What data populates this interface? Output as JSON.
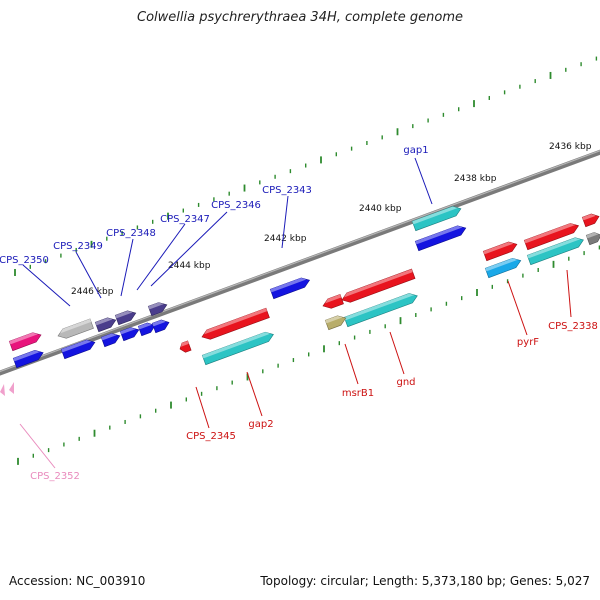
{
  "title": "Colwellia psychrerythraea 34H, complete genome",
  "footer": {
    "accession": "Accession: NC_003910",
    "topology": "Topology: circular; Length: 5,373,180 bp; Genes: 5,027"
  },
  "colors": {
    "backbone": "#7a7a7a",
    "tick": "#2e8b2e",
    "forward_label": "#1a1ab8",
    "reverse_label": "#cc1111",
    "pseudo_label": "#e98bbd",
    "red": "#e8141e",
    "cyan": "#2cc4c4",
    "blue": "#1414e0",
    "purple": "#4a3d8c",
    "gray": "#b8b8b8",
    "magenta": "#e8147c",
    "olive": "#b8ad6a",
    "skyblue": "#1aa8e8",
    "pink": "#f0a0cc"
  },
  "scale_labels": [
    "2436 kbp",
    "2438 kbp",
    "2440 kbp",
    "2442 kbp",
    "2444 kbp",
    "2446 kbp"
  ],
  "gene_labels": [
    {
      "name": "gap1",
      "strand": "forward"
    },
    {
      "name": "CPS_2343",
      "strand": "forward"
    },
    {
      "name": "CPS_2346",
      "strand": "forward"
    },
    {
      "name": "CPS_2347",
      "strand": "forward"
    },
    {
      "name": "CPS_2348",
      "strand": "forward"
    },
    {
      "name": "CPS_2349",
      "strand": "forward"
    },
    {
      "name": "CPS_2350",
      "strand": "forward"
    },
    {
      "name": "CPS_2338",
      "strand": "reverse"
    },
    {
      "name": "pyrF",
      "strand": "reverse"
    },
    {
      "name": "gnd",
      "strand": "reverse"
    },
    {
      "name": "msrB1",
      "strand": "reverse"
    },
    {
      "name": "gap2",
      "strand": "reverse"
    },
    {
      "name": "CPS_2345",
      "strand": "reverse"
    },
    {
      "name": "CPS_2352",
      "strand": "pseudo"
    }
  ]
}
